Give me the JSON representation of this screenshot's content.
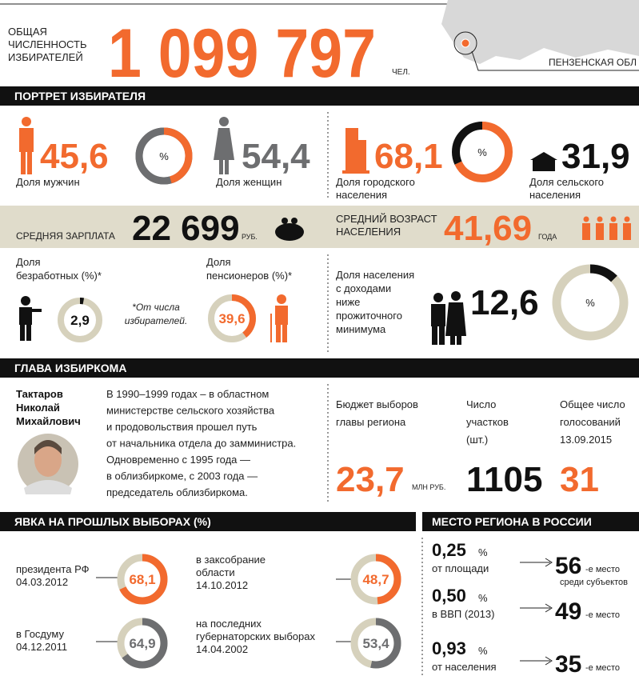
{
  "header": {
    "label": [
      "ОБЩАЯ",
      "ЧИСЛЕННОСТЬ",
      "ИЗБИРАТЕЛЕЙ"
    ],
    "value": "1 099 797",
    "unit": "ЧЕЛ.",
    "region": "ПЕНЗЕНСКАЯ ОБЛ"
  },
  "portrait": {
    "title": "ПОРТРЕТ ИЗБИРАТЕЛЯ",
    "gender": {
      "symbol": "%",
      "men": {
        "value": 45.6,
        "value_label": "45,6",
        "label": "Доля мужчин"
      },
      "women": {
        "value": 54.4,
        "value_label": "54,4",
        "label": "Доля женщин"
      }
    },
    "settlement": {
      "symbol": "%",
      "urban": {
        "value": 68.1,
        "value_label": "68,1",
        "label": [
          "Доля городского",
          "населения"
        ]
      },
      "rural": {
        "value": 31.9,
        "value_label": "31,9",
        "label": [
          "Доля сельского",
          "населения"
        ]
      }
    },
    "salary": {
      "label": "СРЕДНЯЯ ЗАРПЛАТА",
      "value": "22 699",
      "unit": "РУБ."
    },
    "age": {
      "label": [
        "СРЕДНИЙ ВОЗРАСТ",
        "НАСЕЛЕНИЯ"
      ],
      "value": "41,69",
      "unit": "ГОДА"
    },
    "unemployed": {
      "label": [
        "Доля",
        "безработных (%)*"
      ],
      "value": 2.9,
      "value_label": "2,9"
    },
    "note": [
      "*От числа",
      "избирателей."
    ],
    "pensioners": {
      "label": [
        "Доля",
        "пенсионеров (%)*"
      ],
      "value": 39.6,
      "value_label": "39,6"
    },
    "poverty": {
      "label": [
        "Доля населения",
        "с доходами",
        "ниже",
        "прожиточного",
        "минимума"
      ],
      "value": 12.6,
      "value_label": "12,6",
      "symbol": "%"
    }
  },
  "commission": {
    "title": "ГЛАВА ИЗБИРКОМА",
    "name": [
      "Тактаров",
      "Николай",
      "Михайлович"
    ],
    "bio": [
      "В 1990–1999 годах – в областном",
      "министерстве сельского хозяйства",
      "и продовольствия прошел путь",
      "от начальника отдела до замминистра.",
      "Одновременно с 1995 года —",
      "в облизбиркоме, с 2003 года —",
      "председатель облизбиркома."
    ],
    "stats": [
      {
        "label": [
          "Бюджет выборов",
          "главы региона"
        ],
        "value": "23,7",
        "unit": "МЛН РУБ."
      },
      {
        "label": [
          "Число",
          "участков",
          "(шт.)"
        ],
        "value": "1105"
      },
      {
        "label": [
          "Общее число",
          "голосований",
          "13.09.2015"
        ],
        "value": "31"
      }
    ]
  },
  "turnout": {
    "title": "ЯВКА НА ПРОШЛЫХ ВЫБОРАХ (%)",
    "items": [
      {
        "label": [
          "президента РФ",
          "04.03.2012"
        ],
        "value": 68.1,
        "value_label": "68,1",
        "color": "#f26a2e"
      },
      {
        "label": [
          "в заксобрание",
          "области",
          "14.10.2012"
        ],
        "value": 48.7,
        "value_label": "48,7",
        "color": "#f26a2e"
      },
      {
        "label": [
          "в Госдуму",
          "04.12.2011"
        ],
        "value": 64.9,
        "value_label": "64,9",
        "color": "#6d6e70"
      },
      {
        "label": [
          "на последних",
          "губернаторских выборах",
          "14.04.2002"
        ],
        "value": 53.4,
        "value_label": "53,4",
        "color": "#6d6e70"
      }
    ]
  },
  "rank": {
    "title": "МЕСТО РЕГИОНА В РОССИИ",
    "items": [
      {
        "share": "0,25",
        "unit": "%",
        "label": "от площади",
        "place": "56",
        "suffix": "-е место",
        "note": "среди субъектов"
      },
      {
        "share": "0,50",
        "unit": "%",
        "label": "в ВВП (2013)",
        "place": "49",
        "suffix": "-е место"
      },
      {
        "share": "0,93",
        "unit": "%",
        "label": "от населения",
        "place": "35",
        "suffix": "-е место"
      }
    ]
  }
}
